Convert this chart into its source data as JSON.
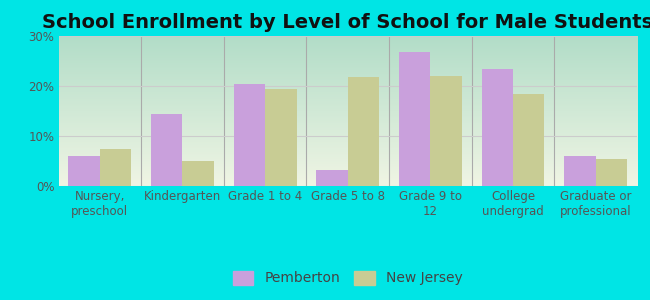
{
  "title": "School Enrollment by Level of School for Male Students",
  "categories": [
    "Nursery,\npreschool",
    "Kindergarten",
    "Grade 1 to 4",
    "Grade 5 to 8",
    "Grade 9 to\n12",
    "College\nundergrad",
    "Graduate or\nprofessional"
  ],
  "pemberton": [
    6.0,
    14.5,
    20.5,
    3.2,
    26.8,
    23.5,
    6.0
  ],
  "new_jersey": [
    7.5,
    5.0,
    19.5,
    21.8,
    22.0,
    18.5,
    5.5
  ],
  "pemberton_color": "#c9a0dc",
  "new_jersey_color": "#c8cc94",
  "background_color": "#00e5e5",
  "plot_bg_top": "#b2ddc8",
  "plot_bg_bottom": "#f0f5e4",
  "grid_color": "#cccccc",
  "separator_color": "#aaaaaa",
  "ylim": [
    0,
    30
  ],
  "yticks": [
    0,
    10,
    20,
    30
  ],
  "ytick_labels": [
    "0%",
    "10%",
    "20%",
    "30%"
  ],
  "title_fontsize": 14,
  "tick_fontsize": 8.5,
  "legend_fontsize": 10,
  "bar_width": 0.38
}
